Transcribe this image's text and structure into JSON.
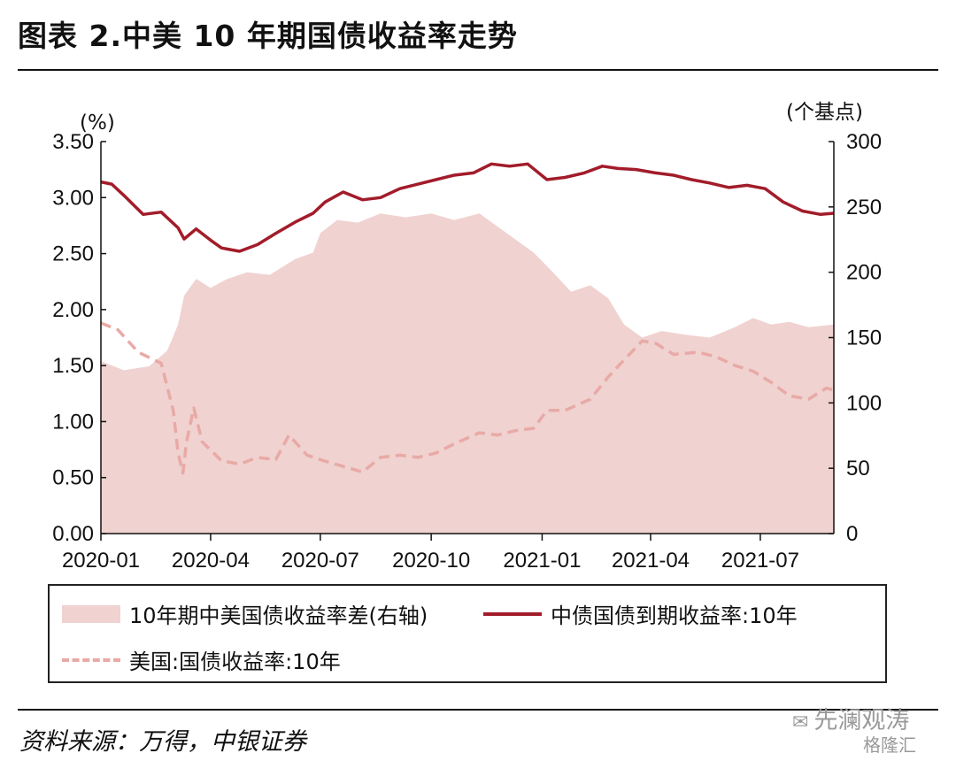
{
  "title": "图表 2.中美 10 年期国债收益率走势",
  "source": "资料来源：万得，中银证券",
  "watermark": {
    "brand": "先澜观涛",
    "sub": "格隆汇"
  },
  "colors": {
    "spread": "#f0d2d0",
    "china": "#a21c2a",
    "us": "#e8aaa6"
  },
  "chart_data": {
    "type": "line",
    "left_axis": {
      "unit": "(%)",
      "ticks": [
        "3.50",
        "3.00",
        "2.50",
        "2.00",
        "1.50",
        "1.00",
        "0.50",
        "0.00"
      ],
      "range": [
        0,
        3.5
      ]
    },
    "right_axis": {
      "unit": "(个基点)",
      "ticks": [
        "300",
        "250",
        "200",
        "150",
        "100",
        "50",
        "0"
      ],
      "range": [
        0,
        300
      ]
    },
    "x_ticks": [
      "2020-01",
      "2020-04",
      "2020-07",
      "2020-10",
      "2021-01",
      "2021-04",
      "2021-07"
    ],
    "x_tick_dates": [
      "2020-01-01",
      "2020-04-01",
      "2020-07-01",
      "2020-10-01",
      "2021-01-01",
      "2021-04-01",
      "2021-07-01"
    ],
    "x_range": [
      "2020-01-01",
      "2021-08-31"
    ],
    "series": [
      {
        "name": "10年期中美国债收益率差(右轴)",
        "kind": "area",
        "axis": "right",
        "dates": [
          "2020-01-01",
          "2020-01-20",
          "2020-02-10",
          "2020-02-25",
          "2020-03-05",
          "2020-03-10",
          "2020-03-20",
          "2020-04-01",
          "2020-04-15",
          "2020-05-01",
          "2020-05-20",
          "2020-06-10",
          "2020-06-25",
          "2020-07-01",
          "2020-07-15",
          "2020-08-01",
          "2020-08-20",
          "2020-09-10",
          "2020-10-01",
          "2020-10-20",
          "2020-11-10",
          "2020-11-25",
          "2020-12-10",
          "2020-12-25",
          "2021-01-10",
          "2021-01-25",
          "2021-02-10",
          "2021-02-25",
          "2021-03-10",
          "2021-03-25",
          "2021-04-10",
          "2021-05-01",
          "2021-05-20",
          "2021-06-10",
          "2021-06-25",
          "2021-07-10",
          "2021-07-25",
          "2021-08-10",
          "2021-08-31"
        ],
        "values": [
          132,
          125,
          128,
          140,
          160,
          182,
          195,
          188,
          195,
          200,
          198,
          210,
          215,
          230,
          240,
          238,
          245,
          242,
          245,
          240,
          245,
          235,
          225,
          215,
          200,
          185,
          190,
          180,
          160,
          150,
          155,
          152,
          150,
          158,
          165,
          160,
          162,
          158,
          160
        ]
      },
      {
        "name": "中债国债到期收益率:10年",
        "kind": "line",
        "axis": "left",
        "dates": [
          "2020-01-01",
          "2020-01-10",
          "2020-01-20",
          "2020-02-05",
          "2020-02-20",
          "2020-03-05",
          "2020-03-10",
          "2020-03-20",
          "2020-04-01",
          "2020-04-10",
          "2020-04-25",
          "2020-05-10",
          "2020-05-25",
          "2020-06-10",
          "2020-06-25",
          "2020-07-05",
          "2020-07-20",
          "2020-08-05",
          "2020-08-20",
          "2020-09-05",
          "2020-09-20",
          "2020-10-05",
          "2020-10-20",
          "2020-11-05",
          "2020-11-20",
          "2020-12-05",
          "2020-12-20",
          "2021-01-05",
          "2021-01-20",
          "2021-02-05",
          "2021-02-20",
          "2021-03-05",
          "2021-03-20",
          "2021-04-05",
          "2021-04-20",
          "2021-05-05",
          "2021-05-20",
          "2021-06-05",
          "2021-06-20",
          "2021-07-05",
          "2021-07-20",
          "2021-08-05",
          "2021-08-20",
          "2021-08-31"
        ],
        "values": [
          3.14,
          3.12,
          3.02,
          2.85,
          2.87,
          2.73,
          2.63,
          2.72,
          2.62,
          2.55,
          2.52,
          2.58,
          2.68,
          2.78,
          2.86,
          2.96,
          3.05,
          2.98,
          3.0,
          3.08,
          3.12,
          3.16,
          3.2,
          3.22,
          3.3,
          3.28,
          3.3,
          3.16,
          3.18,
          3.22,
          3.28,
          3.26,
          3.25,
          3.22,
          3.2,
          3.16,
          3.13,
          3.09,
          3.11,
          3.08,
          2.96,
          2.88,
          2.85,
          2.86
        ]
      },
      {
        "name": "美国:国债收益率:10年",
        "kind": "dashed",
        "axis": "left",
        "dates": [
          "2020-01-01",
          "2020-01-15",
          "2020-02-01",
          "2020-02-20",
          "2020-03-01",
          "2020-03-05",
          "2020-03-09",
          "2020-03-12",
          "2020-03-18",
          "2020-03-25",
          "2020-04-10",
          "2020-04-25",
          "2020-05-10",
          "2020-05-25",
          "2020-06-05",
          "2020-06-20",
          "2020-07-01",
          "2020-07-20",
          "2020-08-05",
          "2020-08-20",
          "2020-09-05",
          "2020-09-20",
          "2020-10-05",
          "2020-10-20",
          "2020-11-10",
          "2020-11-25",
          "2020-12-10",
          "2020-12-25",
          "2021-01-05",
          "2021-01-20",
          "2021-02-10",
          "2021-02-25",
          "2021-03-10",
          "2021-03-25",
          "2021-04-05",
          "2021-04-20",
          "2021-05-10",
          "2021-05-25",
          "2021-06-10",
          "2021-06-25",
          "2021-07-10",
          "2021-07-25",
          "2021-08-10",
          "2021-08-25",
          "2021-08-31"
        ],
        "values": [
          1.88,
          1.82,
          1.62,
          1.52,
          1.1,
          0.72,
          0.54,
          0.82,
          1.12,
          0.82,
          0.65,
          0.62,
          0.68,
          0.66,
          0.88,
          0.7,
          0.66,
          0.6,
          0.55,
          0.68,
          0.7,
          0.68,
          0.72,
          0.8,
          0.9,
          0.88,
          0.92,
          0.94,
          1.1,
          1.1,
          1.2,
          1.4,
          1.55,
          1.72,
          1.7,
          1.6,
          1.62,
          1.58,
          1.5,
          1.45,
          1.35,
          1.23,
          1.2,
          1.3,
          1.28
        ]
      }
    ]
  }
}
